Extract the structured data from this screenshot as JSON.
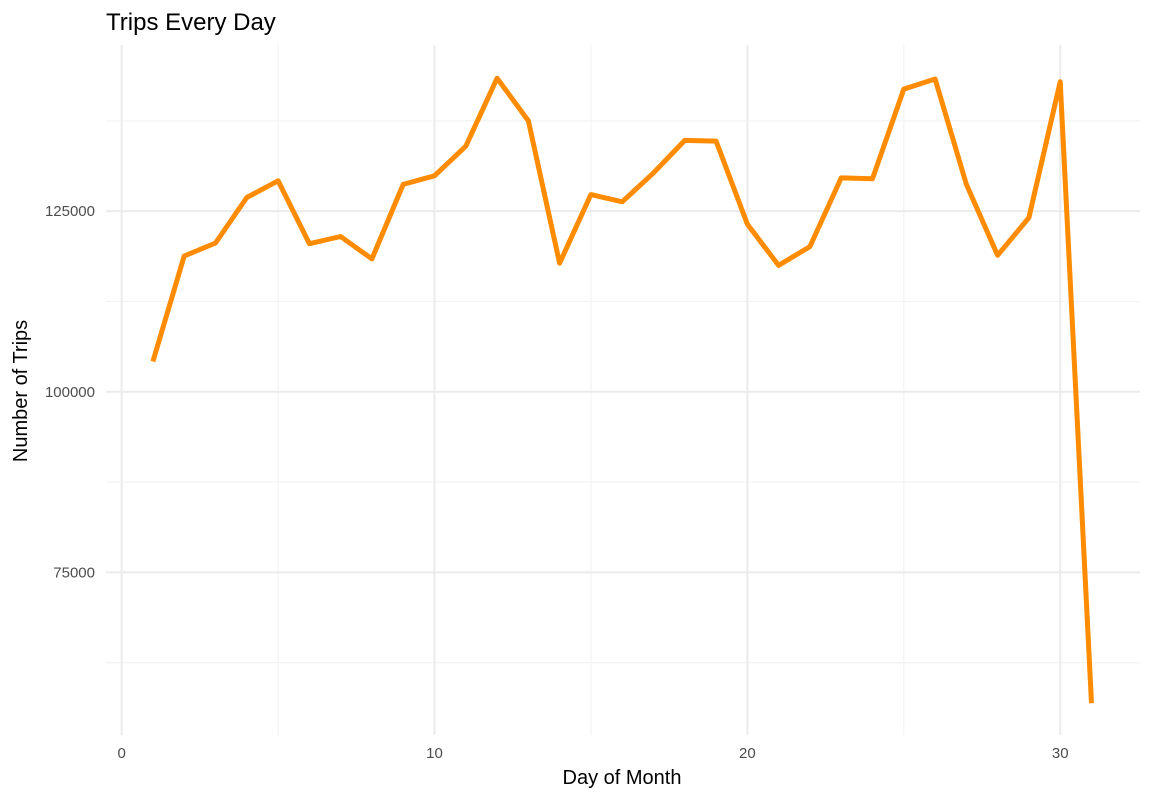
{
  "chart_data": {
    "type": "line",
    "title": "Trips Every Day",
    "xlabel": "Day of Month",
    "ylabel": "Number of Trips",
    "xlim": [
      -0.5,
      32.55
    ],
    "ylim": [
      52500,
      148000
    ],
    "x_ticks": [
      0,
      10,
      20,
      30
    ],
    "x_tick_labels": [
      "0",
      "10",
      "20",
      "30"
    ],
    "y_ticks": [
      75000,
      100000,
      125000
    ],
    "y_tick_labels": [
      "75000",
      "100000",
      "125000"
    ],
    "grid": true,
    "legend": "none",
    "series": [
      {
        "color": "#FF8C00",
        "x": [
          1,
          2,
          3,
          4,
          5,
          6,
          7,
          8,
          9,
          10,
          11,
          12,
          13,
          14,
          15,
          16,
          17,
          18,
          19,
          20,
          21,
          22,
          23,
          24,
          25,
          26,
          27,
          28,
          29,
          30,
          31
        ],
        "y": [
          104200,
          118800,
          120600,
          126900,
          129200,
          120500,
          121500,
          118400,
          128700,
          129900,
          134000,
          143400,
          137500,
          117800,
          127300,
          126300,
          130300,
          134800,
          134700,
          123200,
          117500,
          120100,
          129600,
          129500,
          141900,
          143300,
          128700,
          118900,
          124100,
          142900,
          56900
        ]
      }
    ]
  }
}
